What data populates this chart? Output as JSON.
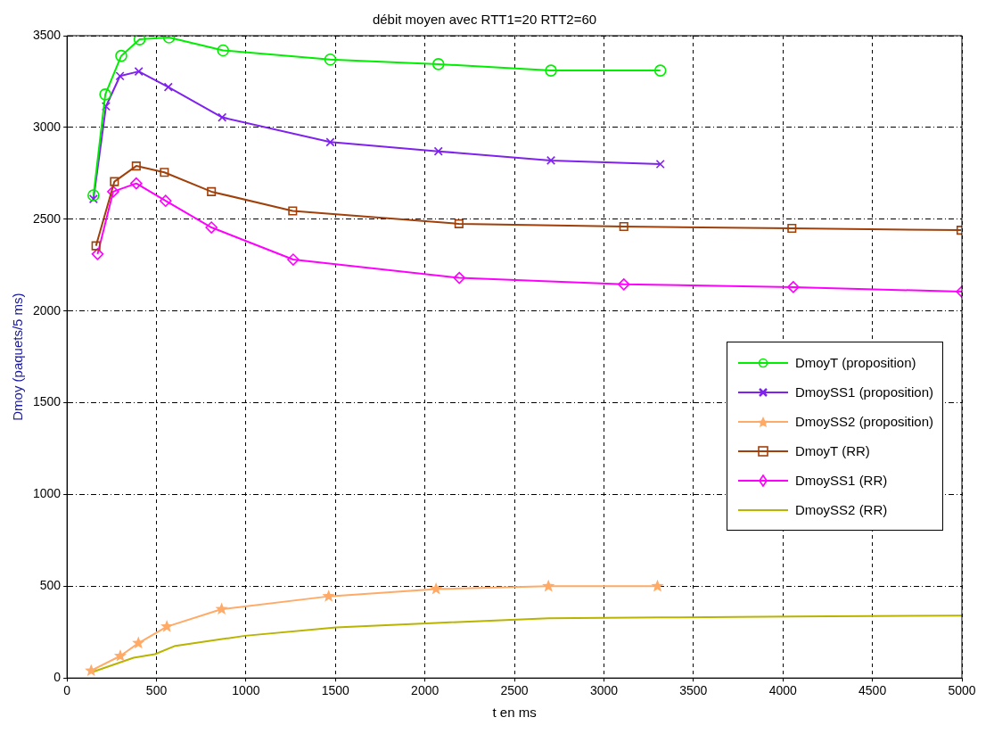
{
  "chart_data": {
    "type": "line",
    "title": "débit moyen avec RTT1=20 RTT2=60",
    "xlabel": "t en ms",
    "ylabel": "Dmoy (paquets/5 ms)",
    "xlim": [
      0,
      5000
    ],
    "xticks": [
      0,
      500,
      1000,
      1500,
      2000,
      2500,
      3000,
      3500,
      4000,
      4500,
      5000
    ],
    "ylim": [
      0,
      3500
    ],
    "yticks": [
      0,
      500,
      1000,
      1500,
      2000,
      2500,
      3000,
      3500
    ],
    "grid": true,
    "legend": "right",
    "line_style": "solid",
    "series": [
      {
        "name": "DmoyT (proposition)",
        "color": "#00ee00",
        "marker": "circle",
        "x": [
          148,
          214,
          303,
          406,
          570,
          872,
          1471,
          2075,
          2704,
          3315
        ],
        "values": [
          2630,
          3180,
          3390,
          3480,
          3490,
          3420,
          3370,
          3345,
          3310,
          3310
        ]
      },
      {
        "name": "DmoySS1 (proposition)",
        "color": "#7f22ee",
        "marker": "cross",
        "x": [
          148,
          218,
          296,
          401,
          566,
          867,
          1471,
          2075,
          2704,
          3315
        ],
        "values": [
          2610,
          3115,
          3280,
          3305,
          3220,
          3055,
          2920,
          2870,
          2820,
          2800
        ]
      },
      {
        "name": "DmoySS2 (proposition)",
        "color": "#ffaa66",
        "marker": "star",
        "x": [
          135,
          298,
          399,
          558,
          864,
          1462,
          2062,
          2690,
          3299
        ],
        "values": [
          40,
          120,
          190,
          280,
          375,
          445,
          485,
          500,
          500
        ]
      },
      {
        "name": "DmoyT (RR)",
        "color": "#a0400a",
        "marker": "square",
        "x": [
          162,
          265,
          387,
          544,
          807,
          1261,
          2190,
          3111,
          4050,
          4995
        ],
        "values": [
          2355,
          2705,
          2790,
          2755,
          2650,
          2545,
          2475,
          2460,
          2450,
          2440
        ]
      },
      {
        "name": "DmoySS1 (RR)",
        "color": "#ff00ff",
        "marker": "diamond",
        "x": [
          171,
          258,
          387,
          551,
          807,
          1264,
          2192,
          3111,
          4058,
          5000
        ],
        "values": [
          2310,
          2650,
          2695,
          2600,
          2455,
          2280,
          2180,
          2145,
          2130,
          2105
        ]
      },
      {
        "name": "DmoySS2 (RR)",
        "color": "#b8b400",
        "marker": "none",
        "x": [
          135,
          372,
          491,
          605,
          995,
          1503,
          2062,
          2690,
          3310,
          4057,
          5000
        ],
        "values": [
          30,
          110,
          130,
          175,
          230,
          275,
          300,
          325,
          330,
          335,
          340
        ]
      }
    ]
  }
}
